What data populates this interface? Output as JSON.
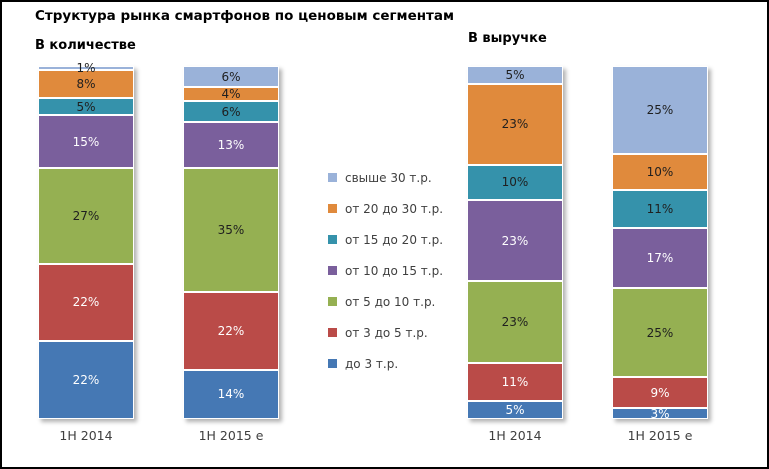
{
  "title": "Структура рынка смартфонов по ценовым сегментам",
  "chart_data": [
    {
      "type": "bar",
      "stacked": true,
      "title": "В количестве",
      "unit": "%",
      "ylim": [
        0,
        100
      ],
      "grid": false,
      "categories": [
        "1H 2014",
        "1H 2015 e"
      ],
      "series": [
        {
          "name": "до 3 т.р.",
          "color": "#4578B4",
          "label_color": "#ffffff",
          "values": [
            22,
            14
          ]
        },
        {
          "name": "от 3 до 5 т.р.",
          "color": "#BA4B48",
          "label_color": "#ffffff",
          "values": [
            22,
            22
          ]
        },
        {
          "name": "от 5 до 10 т.р.",
          "color": "#95B052",
          "label_color": "#1f1f1f",
          "values": [
            27,
            35
          ]
        },
        {
          "name": "от 10 до 15 т.р.",
          "color": "#7A5F9C",
          "label_color": "#ffffff",
          "values": [
            15,
            13
          ]
        },
        {
          "name": "от 15 до 20 т.р.",
          "color": "#3592AB",
          "label_color": "#1f1f1f",
          "values": [
            5,
            6
          ]
        },
        {
          "name": "от 20 до 30 т.р.",
          "color": "#E08A3C",
          "label_color": "#1f1f1f",
          "values": [
            8,
            4
          ]
        },
        {
          "name": "свыше 30 т.р.",
          "color": "#9AB2D9",
          "label_color": "#1f1f1f",
          "values": [
            1,
            6
          ]
        }
      ],
      "legend_position": "center-between-charts"
    },
    {
      "type": "bar",
      "stacked": true,
      "title": "В выручке",
      "unit": "%",
      "ylim": [
        0,
        100
      ],
      "grid": false,
      "categories": [
        "1H 2014",
        "1H 2015 e"
      ],
      "series": [
        {
          "name": "до 3 т.р.",
          "color": "#4578B4",
          "label_color": "#ffffff",
          "values": [
            5,
            3
          ]
        },
        {
          "name": "от 3 до 5 т.р.",
          "color": "#BA4B48",
          "label_color": "#ffffff",
          "values": [
            11,
            9
          ]
        },
        {
          "name": "от 5 до 10 т.р.",
          "color": "#95B052",
          "label_color": "#1f1f1f",
          "values": [
            23,
            25
          ]
        },
        {
          "name": "от 10 до 15 т.р.",
          "color": "#7A5F9C",
          "label_color": "#ffffff",
          "values": [
            23,
            17
          ]
        },
        {
          "name": "от 15 до 20 т.р.",
          "color": "#3592AB",
          "label_color": "#1f1f1f",
          "values": [
            10,
            11
          ]
        },
        {
          "name": "от 20 до 30 т.р.",
          "color": "#E08A3C",
          "label_color": "#1f1f1f",
          "values": [
            23,
            10
          ]
        },
        {
          "name": "свыше 30 т.р.",
          "color": "#9AB2D9",
          "label_color": "#1f1f1f",
          "values": [
            5,
            25
          ]
        }
      ],
      "legend_position": "center-between-charts"
    }
  ]
}
